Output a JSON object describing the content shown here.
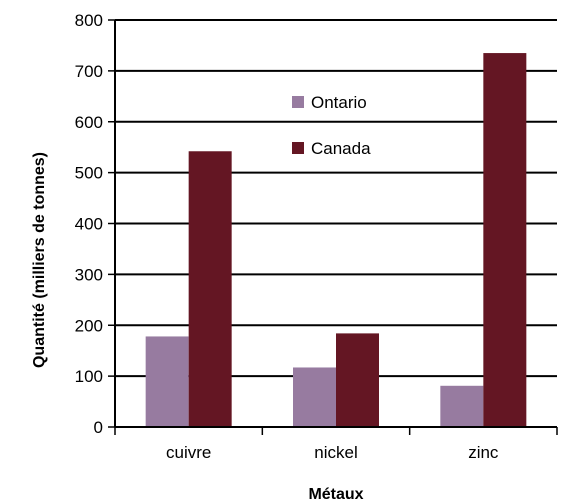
{
  "chart_data": {
    "type": "bar",
    "title": "",
    "xlabel": "Métaux",
    "ylabel": "Quantité (milliers de tonnes)",
    "categories": [
      "cuivre",
      "nickel",
      "zinc"
    ],
    "series": [
      {
        "name": "Ontario",
        "values": [
          178,
          117,
          81
        ],
        "color": "#977BA0"
      },
      {
        "name": "Canada",
        "values": [
          542,
          184,
          735
        ],
        "color": "#641623"
      }
    ],
    "ylim": [
      0,
      800
    ],
    "yticks": [
      0,
      100,
      200,
      300,
      400,
      500,
      600,
      700,
      800
    ],
    "grid": true,
    "legend_position": "inside-top-center"
  }
}
